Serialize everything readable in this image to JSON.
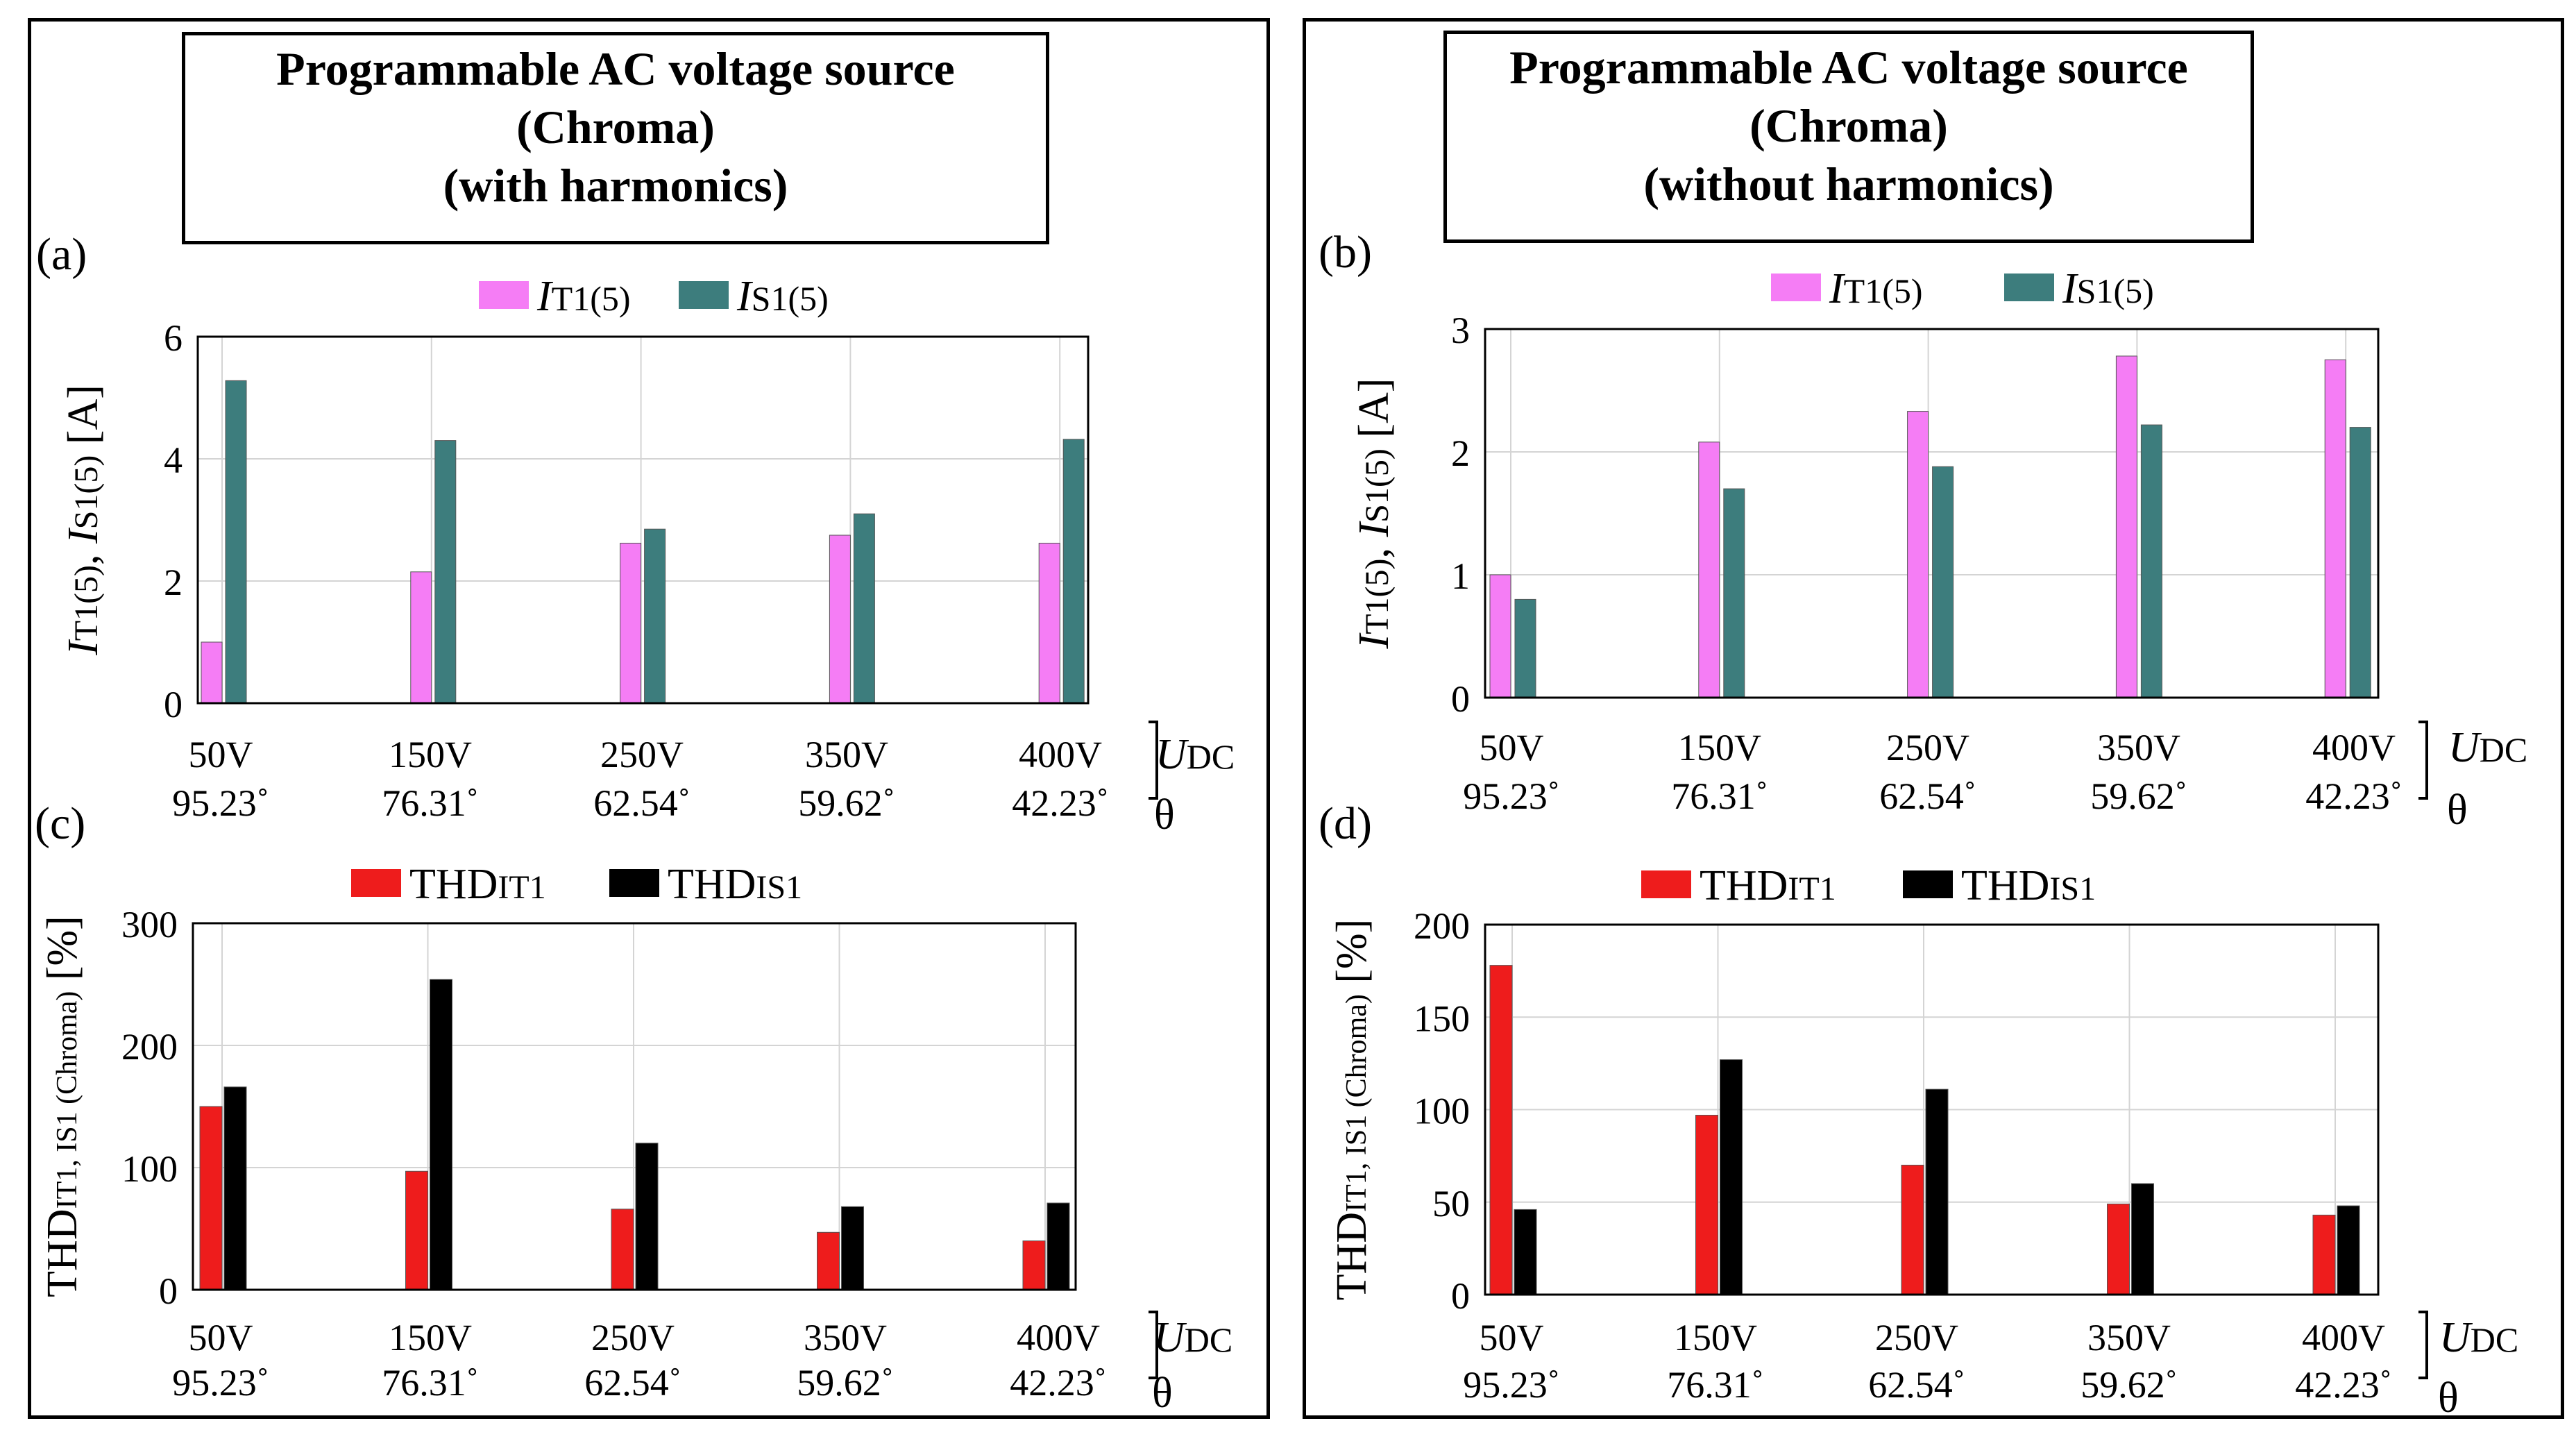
{
  "panels": {
    "left": {
      "title_lines": [
        "Programmable AC voltage source",
        "(Chroma)",
        "(with harmonics)"
      ]
    },
    "right": {
      "title_lines": [
        "Programmable AC voltage source",
        "(Chroma)",
        "(without harmonics)"
      ]
    }
  },
  "x_axis": {
    "udc_labels": [
      "50V",
      "150V",
      "250V",
      "350V",
      "400V"
    ],
    "theta_labels": [
      "95.23˚",
      "76.31˚",
      "62.54˚",
      "59.62˚",
      "42.23˚"
    ],
    "udc_symbol": "U",
    "udc_subscript": "DC",
    "theta_symbol": "θ"
  },
  "colors": {
    "pink": "#f57df5",
    "teal": "#3d7d7d",
    "red": "#ee1c1c",
    "black": "#000000",
    "grid": "#d4d4d4"
  },
  "chart_data": [
    {
      "id": "a",
      "panel_label": "(a)",
      "type": "bar",
      "categories": [
        "50V",
        "150V",
        "250V",
        "350V",
        "400V"
      ],
      "ylim": [
        0,
        6
      ],
      "yticks": [
        0,
        2,
        4,
        6
      ],
      "ylabel": {
        "sym1": "I",
        "sub1": "T1(5)",
        "sep": ", ",
        "sym2": "I",
        "sub2": "S1(5)",
        "unit": " [A]"
      },
      "legend": [
        {
          "sym": "I",
          "sub": "T1(5)"
        },
        {
          "sym": "I",
          "sub": "S1(5)"
        }
      ],
      "series": [
        {
          "name": "IT1(5)",
          "color": "#f57df5",
          "values": [
            1.0,
            2.15,
            2.62,
            2.75,
            2.62
          ]
        },
        {
          "name": "IS1(5)",
          "color": "#3d7d7d",
          "values": [
            5.28,
            4.3,
            2.85,
            3.1,
            4.32
          ]
        }
      ]
    },
    {
      "id": "b",
      "panel_label": "(b)",
      "type": "bar",
      "categories": [
        "50V",
        "150V",
        "250V",
        "350V",
        "400V"
      ],
      "ylim": [
        0,
        3
      ],
      "yticks": [
        0,
        1,
        2,
        3
      ],
      "ylabel": {
        "sym1": "I",
        "sub1": "T1(5)",
        "sep": ", ",
        "sym2": "I",
        "sub2": "S1(5)",
        "unit": " [A]"
      },
      "legend": [
        {
          "sym": "I",
          "sub": "T1(5)"
        },
        {
          "sym": "I",
          "sub": "S1(5)"
        }
      ],
      "series": [
        {
          "name": "IT1(5)",
          "color": "#f57df5",
          "values": [
            1.0,
            2.08,
            2.33,
            2.78,
            2.75
          ]
        },
        {
          "name": "IS1(5)",
          "color": "#3d7d7d",
          "values": [
            0.8,
            1.7,
            1.88,
            2.22,
            2.2
          ]
        }
      ]
    },
    {
      "id": "c",
      "panel_label": "(c)",
      "type": "bar",
      "categories": [
        "50V",
        "150V",
        "250V",
        "350V",
        "400V"
      ],
      "ylim": [
        0,
        300
      ],
      "yticks": [
        0,
        100,
        200,
        300
      ],
      "ylabel": {
        "main": "THD",
        "sub": "IT1, IS1 (Chroma)",
        "unit": " [%]"
      },
      "legend": [
        {
          "sym": "THD",
          "sub": "IT1"
        },
        {
          "sym": "THD",
          "sub": "IS1"
        }
      ],
      "series": [
        {
          "name": "THDIT1",
          "color": "#ee1c1c",
          "values": [
            150,
            97,
            66,
            47,
            40
          ]
        },
        {
          "name": "THDIS1",
          "color": "#000000",
          "values": [
            166,
            254,
            120,
            68,
            71
          ]
        }
      ]
    },
    {
      "id": "d",
      "panel_label": "(d)",
      "type": "bar",
      "categories": [
        "50V",
        "150V",
        "250V",
        "350V",
        "400V"
      ],
      "ylim": [
        0,
        200
      ],
      "yticks": [
        0,
        50,
        100,
        150,
        200
      ],
      "ylabel": {
        "main": "THD",
        "sub": "IT1, IS1 (Chroma)",
        "unit": " [%]"
      },
      "legend": [
        {
          "sym": "THD",
          "sub": "IT1"
        },
        {
          "sym": "THD",
          "sub": "IS1"
        }
      ],
      "series": [
        {
          "name": "THDIT1",
          "color": "#ee1c1c",
          "values": [
            178,
            97,
            70,
            49,
            43
          ]
        },
        {
          "name": "THDIS1",
          "color": "#000000",
          "values": [
            46,
            127,
            111,
            60,
            48
          ]
        }
      ]
    }
  ]
}
